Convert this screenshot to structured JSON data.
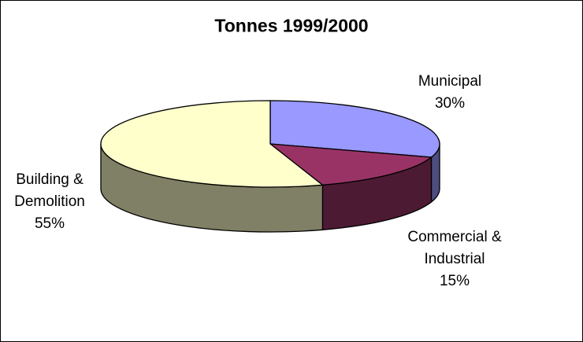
{
  "chart_data": {
    "type": "pie",
    "title": "Tonnes 1999/2000",
    "categories": [
      "Municipal",
      "Commercial & Industrial",
      "Building & Demolition"
    ],
    "values": [
      30,
      15,
      55
    ],
    "value_labels": [
      "30%",
      "15%",
      "55%"
    ],
    "colors": [
      "#9999ff",
      "#993366",
      "#ffffcc"
    ]
  }
}
